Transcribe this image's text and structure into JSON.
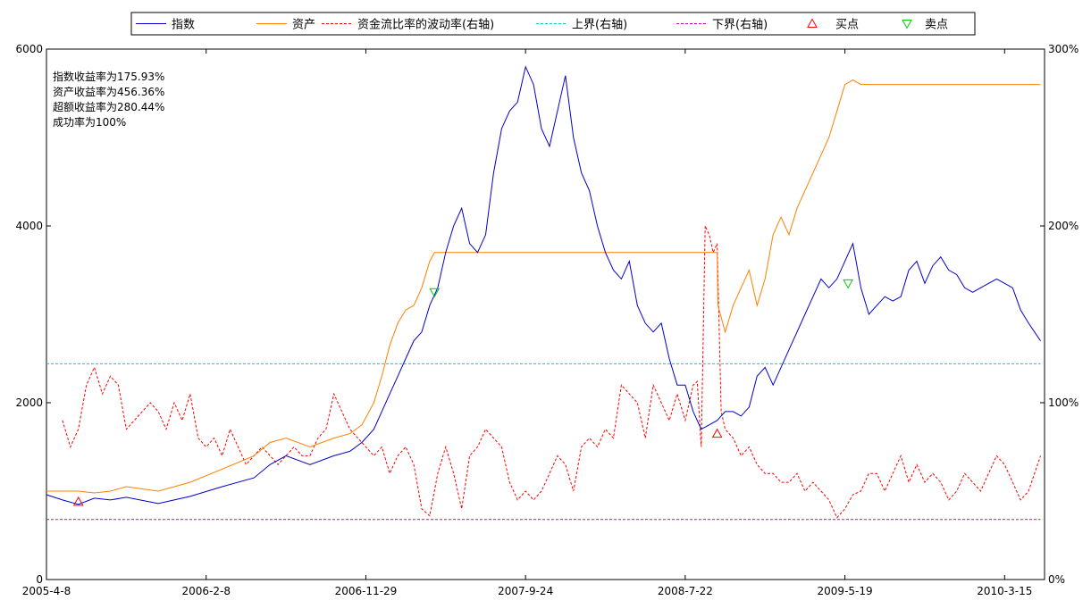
{
  "chart_data": {
    "type": "line",
    "legend": {
      "placement": "top",
      "items": [
        {
          "label": "指数",
          "color": "#0000cc",
          "style": "solid"
        },
        {
          "label": "资产",
          "color": "#ff8000",
          "style": "solid"
        },
        {
          "label": "资金流比率的波动率(右轴)",
          "color": "#ff0000",
          "style": "dashed"
        },
        {
          "label": "上界(右轴)",
          "color": "#00cccc",
          "style": "dashed"
        },
        {
          "label": "下界(右轴)",
          "color": "#cc00cc",
          "style": "dashed"
        },
        {
          "label": "买点",
          "color": "#ff0000",
          "style": "marker-up"
        },
        {
          "label": "卖点",
          "color": "#00cc00",
          "style": "marker-down"
        }
      ]
    },
    "annotations": [
      "指数收益率为175.93%",
      "资产收益率为456.36%",
      "超额收益率为280.44%",
      "成功率为100%"
    ],
    "x_ticks": [
      "2005-4-8",
      "2006-2-8",
      "2006-11-29",
      "2007-9-24",
      "2008-7-22",
      "2009-5-19",
      "2010-3-15"
    ],
    "x_tick_positions": [
      0,
      200,
      400,
      600,
      800,
      1000,
      1200
    ],
    "x_range": [
      0,
      1250
    ],
    "y_left": {
      "ticks": [
        "0",
        "2000",
        "4000",
        "6000"
      ],
      "range": [
        0,
        6000
      ]
    },
    "y_right": {
      "ticks": [
        "0%",
        "100%",
        "200%",
        "300%"
      ],
      "range": [
        0,
        300
      ]
    },
    "grid": false,
    "series": [
      {
        "name": "指数",
        "axis": "left",
        "color": "#0000cc",
        "dash": "",
        "x": [
          0,
          20,
          40,
          60,
          80,
          100,
          140,
          180,
          220,
          260,
          280,
          300,
          330,
          360,
          380,
          395,
          410,
          420,
          430,
          440,
          450,
          460,
          470,
          480,
          490,
          500,
          510,
          520,
          530,
          540,
          550,
          560,
          570,
          580,
          590,
          600,
          610,
          620,
          630,
          640,
          650,
          660,
          670,
          680,
          690,
          700,
          710,
          720,
          730,
          740,
          750,
          760,
          770,
          780,
          790,
          800,
          810,
          820,
          830,
          840,
          850,
          860,
          870,
          880,
          890,
          900,
          910,
          920,
          930,
          940,
          950,
          960,
          970,
          980,
          990,
          1000,
          1010,
          1020,
          1030,
          1040,
          1050,
          1060,
          1070,
          1080,
          1090,
          1100,
          1110,
          1120,
          1130,
          1140,
          1150,
          1160,
          1170,
          1180,
          1190,
          1200,
          1210,
          1220,
          1230,
          1245
        ],
        "y": [
          960,
          900,
          850,
          920,
          900,
          930,
          860,
          940,
          1050,
          1150,
          1300,
          1400,
          1300,
          1400,
          1450,
          1550,
          1700,
          1900,
          2100,
          2300,
          2500,
          2700,
          2800,
          3100,
          3300,
          3700,
          4000,
          4200,
          3800,
          3700,
          3900,
          4600,
          5100,
          5300,
          5400,
          5800,
          5600,
          5100,
          4900,
          5300,
          5700,
          5000,
          4600,
          4400,
          4000,
          3700,
          3500,
          3400,
          3600,
          3100,
          2900,
          2800,
          2900,
          2500,
          2200,
          2200,
          1900,
          1700,
          1750,
          1800,
          1900,
          1900,
          1850,
          1950,
          2300,
          2400,
          2200,
          2400,
          2600,
          2800,
          3000,
          3200,
          3400,
          3300,
          3400,
          3600,
          3800,
          3300,
          3000,
          3100,
          3200,
          3150,
          3200,
          3500,
          3600,
          3350,
          3550,
          3650,
          3500,
          3450,
          3300,
          3250,
          3300,
          3350,
          3400,
          3350,
          3300,
          3050,
          2900,
          2700
        ]
      },
      {
        "name": "资产",
        "axis": "left",
        "color": "#ff8000",
        "dash": "",
        "x": [
          0,
          20,
          40,
          60,
          80,
          100,
          140,
          180,
          220,
          260,
          280,
          300,
          330,
          360,
          380,
          395,
          410,
          420,
          430,
          440,
          450,
          460,
          470,
          480,
          486,
          700,
          840,
          841,
          850,
          860,
          870,
          880,
          890,
          900,
          910,
          920,
          930,
          940,
          950,
          960,
          970,
          980,
          990,
          1000,
          1010,
          1020,
          1030,
          1040,
          1050,
          1060,
          1070,
          1080,
          1090,
          1100,
          1110,
          1120,
          1130,
          1140,
          1150,
          1160,
          1170,
          1180,
          1190,
          1200,
          1210,
          1220,
          1230,
          1245
        ],
        "y": [
          1000,
          1000,
          1000,
          980,
          1000,
          1050,
          1000,
          1100,
          1250,
          1400,
          1550,
          1600,
          1500,
          1600,
          1650,
          1750,
          2000,
          2300,
          2650,
          2900,
          3050,
          3100,
          3300,
          3600,
          3700,
          3700,
          3700,
          3100,
          2800,
          3100,
          3300,
          3500,
          3100,
          3400,
          3900,
          4100,
          3900,
          4200,
          4400,
          4600,
          4800,
          5000,
          5300,
          5600,
          5650,
          5600,
          5600,
          5600,
          5600,
          5600,
          5600,
          5600,
          5600,
          5600,
          5600,
          5600,
          5600,
          5600,
          5600,
          5600,
          5600,
          5600,
          5600,
          5600,
          5600,
          5600,
          5600,
          5600
        ]
      },
      {
        "name": "资金流比率的波动率(右轴)",
        "axis": "right",
        "color": "#ff0000",
        "dash": "3,2",
        "x": [
          20,
          30,
          40,
          50,
          60,
          70,
          80,
          90,
          100,
          110,
          120,
          130,
          140,
          150,
          160,
          170,
          180,
          190,
          200,
          210,
          220,
          230,
          240,
          250,
          260,
          270,
          280,
          290,
          300,
          310,
          320,
          330,
          340,
          350,
          360,
          370,
          380,
          390,
          400,
          410,
          420,
          430,
          440,
          450,
          460,
          470,
          480,
          490,
          500,
          510,
          520,
          530,
          540,
          550,
          560,
          570,
          580,
          590,
          600,
          610,
          620,
          630,
          640,
          650,
          660,
          670,
          680,
          690,
          700,
          710,
          720,
          730,
          740,
          750,
          760,
          770,
          780,
          790,
          800,
          810,
          815,
          820,
          825,
          830,
          835,
          840,
          845,
          850,
          860,
          870,
          880,
          890,
          900,
          910,
          920,
          930,
          940,
          950,
          960,
          970,
          980,
          990,
          1000,
          1010,
          1020,
          1030,
          1040,
          1050,
          1060,
          1070,
          1080,
          1090,
          1100,
          1110,
          1120,
          1130,
          1140,
          1150,
          1160,
          1170,
          1180,
          1190,
          1200,
          1210,
          1220,
          1230,
          1245
        ],
        "y": [
          90,
          75,
          85,
          110,
          120,
          105,
          115,
          110,
          85,
          90,
          95,
          100,
          95,
          85,
          100,
          90,
          105,
          80,
          75,
          80,
          70,
          85,
          75,
          65,
          70,
          75,
          70,
          65,
          70,
          75,
          70,
          70,
          80,
          85,
          105,
          95,
          85,
          80,
          75,
          70,
          75,
          60,
          70,
          75,
          65,
          40,
          36,
          60,
          75,
          60,
          40,
          70,
          75,
          85,
          80,
          75,
          55,
          45,
          50,
          45,
          50,
          60,
          70,
          65,
          50,
          75,
          80,
          75,
          85,
          80,
          110,
          105,
          100,
          80,
          110,
          100,
          90,
          105,
          90,
          110,
          112,
          75,
          200,
          195,
          185,
          190,
          95,
          85,
          80,
          70,
          75,
          65,
          60,
          60,
          55,
          55,
          60,
          50,
          55,
          50,
          45,
          35,
          40,
          48,
          50,
          60,
          60,
          50,
          60,
          70,
          55,
          65,
          55,
          60,
          55,
          45,
          50,
          60,
          55,
          50,
          60,
          70,
          65,
          55,
          45,
          50,
          70
        ]
      },
      {
        "name": "上界(右轴)",
        "axis": "right",
        "color": "#00cccc",
        "dash": "3,2",
        "x": [
          0,
          1245
        ],
        "y": [
          122,
          122
        ]
      },
      {
        "name": "下界(右轴)",
        "axis": "right",
        "color": "#cc00cc",
        "dash": "3,2",
        "x": [
          0,
          1245
        ],
        "y": [
          34,
          34
        ]
      }
    ],
    "buy_points": {
      "color": "#ff0000",
      "x": [
        40,
        840
      ],
      "y": [
        880,
        1650
      ]
    },
    "sell_points": {
      "color": "#00cc00",
      "x": [
        486,
        1004
      ],
      "y": [
        3250,
        3350
      ]
    }
  }
}
